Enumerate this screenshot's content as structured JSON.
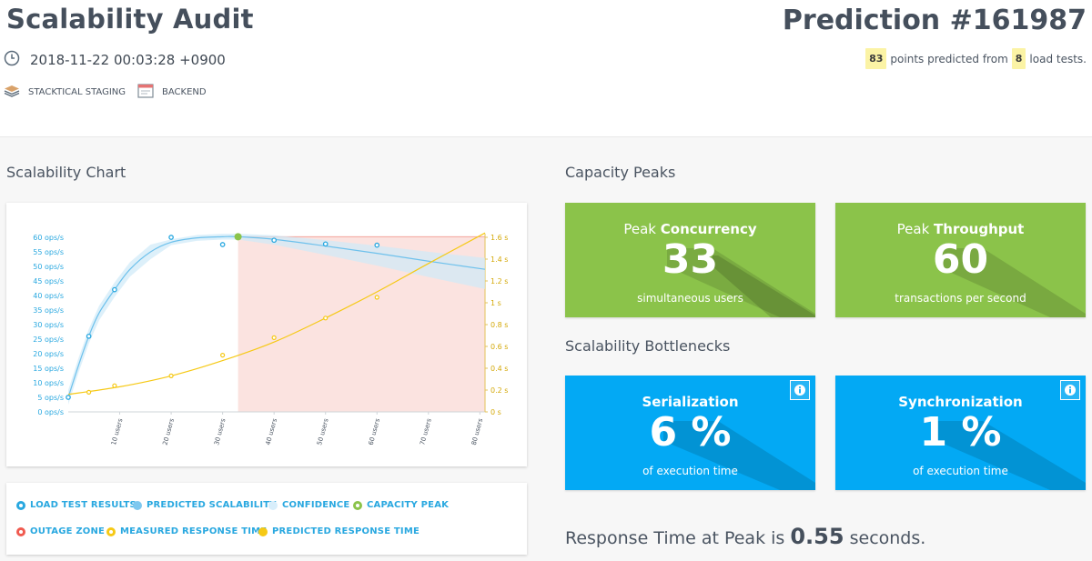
{
  "header": {
    "title": "Scalability Audit",
    "prediction": "Prediction #161987",
    "date": "2018-11-22 00:03:28 +0900",
    "tags": [
      {
        "label": "STACKTICAL STAGING",
        "icon": "layers-icon"
      },
      {
        "label": "BACKEND",
        "icon": "browser-window-icon"
      }
    ],
    "points": {
      "count": "83",
      "text_mid": "points predicted from",
      "tests": "8",
      "text_end": "load tests."
    }
  },
  "sections": {
    "chart": "Scalability Chart",
    "capacity": "Capacity Peaks",
    "bottlenecks": "Scalability Bottlenecks"
  },
  "tiles": {
    "concurrency": {
      "title_pre": "Peak ",
      "title_bold": "Concurrency",
      "value": "33",
      "sub": "simultaneous users"
    },
    "throughput": {
      "title_pre": "Peak ",
      "title_bold": "Throughput",
      "value": "60",
      "sub": "transactions per second"
    },
    "serialization": {
      "title": "Serialization",
      "value": "6 %",
      "sub": "of execution time"
    },
    "synchronization": {
      "title": "Synchronization",
      "value": "1 %",
      "sub": "of execution time"
    }
  },
  "response": {
    "pre": "Response Time at Peak is ",
    "value": "0.55",
    "post": " seconds."
  },
  "legend": [
    {
      "label": "LOAD TEST RESULTS",
      "color": "#29a8e0",
      "style": "ring"
    },
    {
      "label": "PREDICTED SCALABILITY",
      "color": "#7ec8ef",
      "style": "solid"
    },
    {
      "label": "CONFIDENCE",
      "color": "#d8eefb",
      "style": "solid"
    },
    {
      "label": "CAPACITY PEAK",
      "color": "#8bc34a",
      "style": "ring"
    },
    {
      "label": "OUTAGE ZONE",
      "color": "#f05a4f",
      "style": "ring"
    },
    {
      "label": "MEASURED RESPONSE TIME",
      "color": "#f6c915",
      "style": "ring"
    },
    {
      "label": "PREDICTED RESPONSE TIME",
      "color": "#f6c915",
      "style": "solid"
    }
  ],
  "colors": {
    "green": "#8bc34a",
    "blue": "#03a9f4",
    "throughput": "#29a8e0",
    "response": "#f6c915",
    "outage": "#fbe3e0"
  },
  "chart_data": {
    "type": "line",
    "x_ticks": [
      "10 users",
      "20 users",
      "30 users",
      "40 users",
      "50 users",
      "60 users",
      "70 users",
      "80 users"
    ],
    "xlim": [
      0,
      81
    ],
    "y_left_ticks": [
      "0 ops/s",
      "5 ops/s",
      "10 ops/s",
      "15 ops/s",
      "20 ops/s",
      "25 ops/s",
      "30 ops/s",
      "35 ops/s",
      "40 ops/s",
      "45 ops/s",
      "50 ops/s",
      "55 ops/s",
      "60 ops/s"
    ],
    "y_left_lim": [
      0,
      60
    ],
    "y_right_ticks": [
      "0 s",
      "0.2 s",
      "0.4 s",
      "0.6 s",
      "0.8 s",
      "1 s",
      "1.2 s",
      "1.4 s",
      "1.6 s"
    ],
    "y_right_lim": [
      0,
      1.6
    ],
    "outage_zone_start_users": 33,
    "capacity_peak": {
      "x": 33,
      "y": 60.2
    },
    "series": [
      {
        "role": "load-test-results",
        "axis": "left",
        "points": [
          [
            0,
            5
          ],
          [
            4,
            26
          ],
          [
            9,
            42
          ],
          [
            20,
            60
          ],
          [
            30,
            57.5
          ],
          [
            40,
            59
          ],
          [
            50,
            57.7
          ],
          [
            60,
            57.3
          ]
        ]
      },
      {
        "role": "predicted-scalability",
        "axis": "left",
        "points": [
          [
            0,
            5
          ],
          [
            2,
            16
          ],
          [
            4,
            26
          ],
          [
            6,
            34
          ],
          [
            9,
            42
          ],
          [
            12,
            49
          ],
          [
            16,
            55
          ],
          [
            20,
            58.3
          ],
          [
            25,
            59.8
          ],
          [
            30,
            60.2
          ],
          [
            33,
            60.2
          ],
          [
            40,
            59.3
          ],
          [
            50,
            57
          ],
          [
            60,
            54.5
          ],
          [
            70,
            51.8
          ],
          [
            81,
            49
          ]
        ]
      },
      {
        "role": "measured-response-time",
        "axis": "right",
        "points": [
          [
            4,
            0.18
          ],
          [
            9,
            0.24
          ],
          [
            20,
            0.33
          ],
          [
            30,
            0.52
          ],
          [
            40,
            0.68
          ],
          [
            50,
            0.86
          ],
          [
            60,
            1.05
          ]
        ]
      },
      {
        "role": "predicted-response-time",
        "axis": "right",
        "points": [
          [
            0,
            0.16
          ],
          [
            10,
            0.23
          ],
          [
            20,
            0.33
          ],
          [
            30,
            0.47
          ],
          [
            40,
            0.64
          ],
          [
            50,
            0.86
          ],
          [
            60,
            1.1
          ],
          [
            70,
            1.36
          ],
          [
            81,
            1.64
          ]
        ]
      }
    ]
  }
}
